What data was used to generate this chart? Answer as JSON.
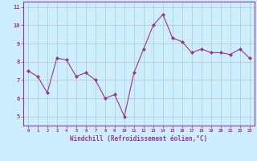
{
  "x": [
    0,
    1,
    2,
    3,
    4,
    5,
    6,
    7,
    8,
    9,
    10,
    11,
    12,
    13,
    14,
    15,
    16,
    17,
    18,
    19,
    20,
    21,
    22,
    23
  ],
  "y": [
    7.5,
    7.2,
    6.3,
    8.2,
    8.1,
    7.2,
    7.4,
    7.0,
    6.0,
    6.2,
    5.0,
    7.4,
    8.7,
    10.0,
    10.6,
    9.3,
    9.1,
    8.5,
    8.7,
    8.5,
    8.5,
    8.4,
    8.7,
    8.2
  ],
  "line_color": "#993399",
  "marker_color": "#993399",
  "bg_color": "#cceeff",
  "grid_color": "#aacccc",
  "xlabel": "Windchill (Refroidissement éolien,°C)",
  "ylim": [
    4.5,
    11.3
  ],
  "xlim": [
    -0.5,
    23.5
  ],
  "yticks": [
    5,
    6,
    7,
    8,
    9,
    10,
    11
  ],
  "xticks": [
    0,
    1,
    2,
    3,
    4,
    5,
    6,
    7,
    8,
    9,
    10,
    11,
    12,
    13,
    14,
    15,
    16,
    17,
    18,
    19,
    20,
    21,
    22,
    23
  ],
  "tick_color": "#993399",
  "label_color": "#993399",
  "spine_color": "#993399"
}
